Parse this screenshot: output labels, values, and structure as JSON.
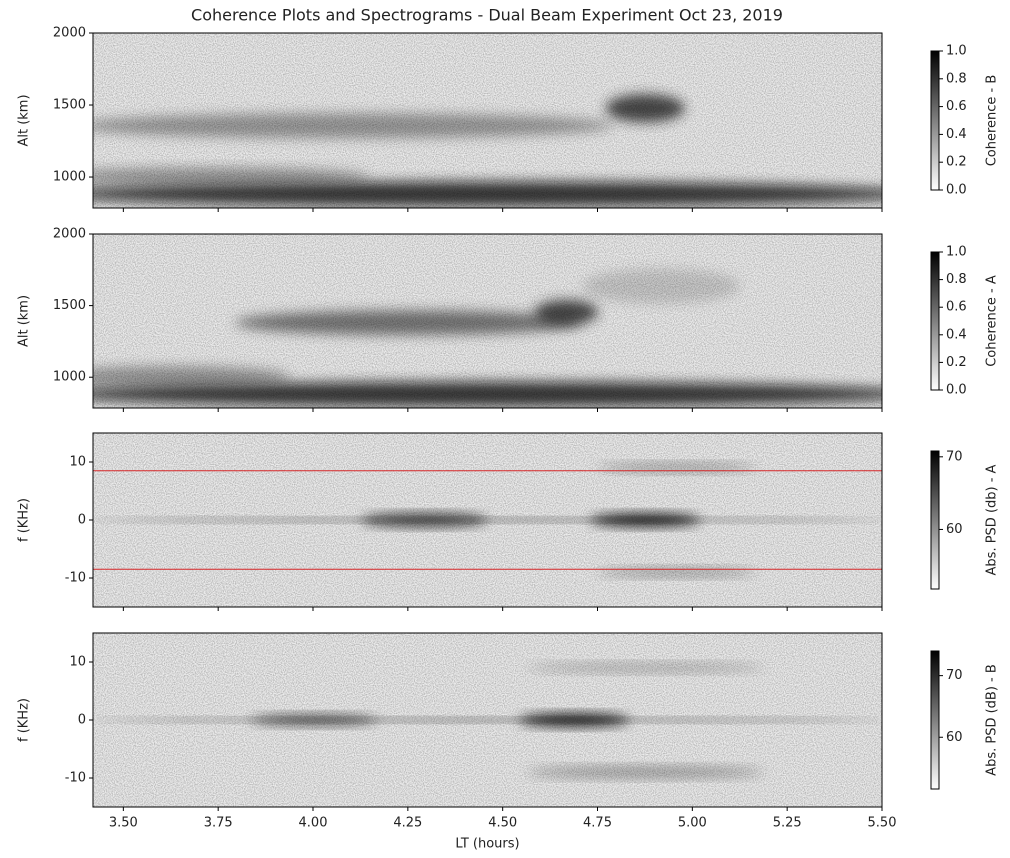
{
  "title": "Coherence Plots and Spectrograms - Dual Beam Experiment Oct 23, 2019",
  "chart_data": [
    {
      "type": "heatmap",
      "ylabel": "Alt (km)",
      "colorbar_label": "Coherence - B",
      "xlim": [
        3.42,
        5.5
      ],
      "ylim": [
        785,
        2000
      ],
      "yticks": [
        1000,
        1500,
        2000
      ],
      "xticks": [
        {
          "value": 3.5,
          "label": "3.50"
        },
        {
          "value": 3.75,
          "label": "3.75"
        },
        {
          "value": 4.0,
          "label": "4.00"
        },
        {
          "value": 4.25,
          "label": "4.25"
        },
        {
          "value": 4.5,
          "label": "4.50"
        },
        {
          "value": 4.75,
          "label": "4.75"
        },
        {
          "value": 5.0,
          "label": "5.00"
        },
        {
          "value": 5.25,
          "label": "5.25"
        },
        {
          "value": 5.5,
          "label": "5.50"
        }
      ],
      "clim": [
        0,
        1
      ],
      "cticks": [
        {
          "value": 0,
          "label": "0.0"
        },
        {
          "value": 0.2,
          "label": "0.2"
        },
        {
          "value": 0.4,
          "label": "0.4"
        },
        {
          "value": 0.6,
          "label": "0.6"
        },
        {
          "value": 0.8,
          "label": "0.8"
        },
        {
          "value": 1,
          "label": "1.0"
        }
      ]
    },
    {
      "type": "heatmap",
      "ylabel": "Alt (km)",
      "colorbar_label": "Coherence - A",
      "xlim": [
        3.42,
        5.5
      ],
      "ylim": [
        785,
        2000
      ],
      "yticks": [
        1000,
        1500,
        2000
      ],
      "xticks": [
        {
          "value": 3.5,
          "label": "3.50"
        },
        {
          "value": 3.75,
          "label": "3.75"
        },
        {
          "value": 4.0,
          "label": "4.00"
        },
        {
          "value": 4.25,
          "label": "4.25"
        },
        {
          "value": 4.5,
          "label": "4.50"
        },
        {
          "value": 4.75,
          "label": "4.75"
        },
        {
          "value": 5.0,
          "label": "5.00"
        },
        {
          "value": 5.25,
          "label": "5.25"
        },
        {
          "value": 5.5,
          "label": "5.50"
        }
      ],
      "clim": [
        0,
        1
      ],
      "cticks": [
        {
          "value": 0,
          "label": "0.0"
        },
        {
          "value": 0.2,
          "label": "0.2"
        },
        {
          "value": 0.4,
          "label": "0.4"
        },
        {
          "value": 0.6,
          "label": "0.6"
        },
        {
          "value": 0.8,
          "label": "0.8"
        },
        {
          "value": 1,
          "label": "1.0"
        }
      ]
    },
    {
      "type": "heatmap",
      "ylabel": "f (KHz)",
      "colorbar_label": "Abs. PSD (db) - A",
      "xlim": [
        3.42,
        5.5
      ],
      "ylim": [
        -15,
        15
      ],
      "yticks": [
        -10,
        0,
        10
      ],
      "hlines": [
        8.5,
        -8.5
      ],
      "hline_color": "#d62728",
      "xticks": [
        {
          "value": 3.5,
          "label": "3.50"
        },
        {
          "value": 3.75,
          "label": "3.75"
        },
        {
          "value": 4.0,
          "label": "4.00"
        },
        {
          "value": 4.25,
          "label": "4.25"
        },
        {
          "value": 4.5,
          "label": "4.50"
        },
        {
          "value": 4.75,
          "label": "4.75"
        },
        {
          "value": 5.0,
          "label": "5.00"
        },
        {
          "value": 5.25,
          "label": "5.25"
        },
        {
          "value": 5.5,
          "label": "5.50"
        }
      ],
      "clim": [
        51.8,
        70.8
      ],
      "cticks": [
        60,
        70
      ]
    },
    {
      "type": "heatmap",
      "ylabel": "f (KHz)",
      "colorbar_label": "Abs. PSD (dB) - B",
      "xlabel": "LT (hours)",
      "xlim": [
        3.42,
        5.5
      ],
      "ylim": [
        -15,
        15
      ],
      "yticks": [
        -10,
        0,
        10
      ],
      "xticks": [
        {
          "value": 3.5,
          "label": "3.50"
        },
        {
          "value": 3.75,
          "label": "3.75"
        },
        {
          "value": 4.0,
          "label": "4.00"
        },
        {
          "value": 4.25,
          "label": "4.25"
        },
        {
          "value": 4.5,
          "label": "4.50"
        },
        {
          "value": 4.75,
          "label": "4.75"
        },
        {
          "value": 5.0,
          "label": "5.00"
        },
        {
          "value": 5.25,
          "label": "5.25"
        },
        {
          "value": 5.5,
          "label": "5.50"
        }
      ],
      "clim": [
        51.6,
        74
      ],
      "cticks": [
        60,
        70
      ]
    }
  ]
}
